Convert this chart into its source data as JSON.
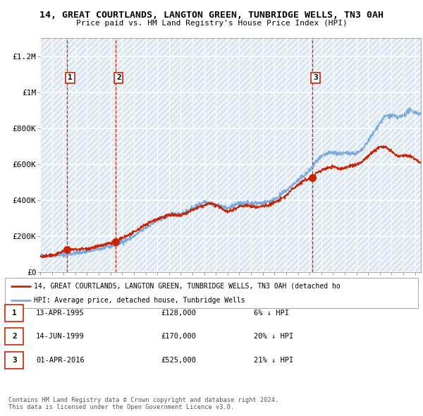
{
  "title": "14, GREAT COURTLANDS, LANGTON GREEN, TUNBRIDGE WELLS, TN3 0AH",
  "subtitle": "Price paid vs. HM Land Registry's House Price Index (HPI)",
  "purchases": [
    {
      "num": 1,
      "date_label": "13-APR-1995",
      "price": 128000,
      "pct": "6%",
      "direction": "↓",
      "x_year": 1995.3
    },
    {
      "num": 2,
      "date_label": "14-JUN-1999",
      "price": 170000,
      "pct": "20%",
      "direction": "↓",
      "x_year": 1999.45
    },
    {
      "num": 3,
      "date_label": "01-APR-2016",
      "price": 525000,
      "pct": "21%",
      "direction": "↓",
      "x_year": 2016.25
    }
  ],
  "legend_line1": "14, GREAT COURTLANDS, LANGTON GREEN, TUNBRIDGE WELLS, TN3 0AH (detached ho",
  "legend_line2": "HPI: Average price, detached house, Tunbridge Wells",
  "footer1": "Contains HM Land Registry data © Crown copyright and database right 2024.",
  "footer2": "This data is licensed under the Open Government Licence v3.0.",
  "ylim": [
    0,
    1300000
  ],
  "yticks": [
    0,
    200000,
    400000,
    600000,
    800000,
    1000000,
    1200000
  ],
  "ytick_labels": [
    "£0",
    "£200K",
    "£400K",
    "£600K",
    "£800K",
    "£1M",
    "£1.2M"
  ],
  "hpi_color": "#7aaadd",
  "price_color": "#cc2200",
  "vline_color": "#cc2200",
  "grid_color": "#cccccc",
  "hatch_color": "#dde8f0",
  "xlim_start": 1993.0,
  "xlim_end": 2025.5
}
